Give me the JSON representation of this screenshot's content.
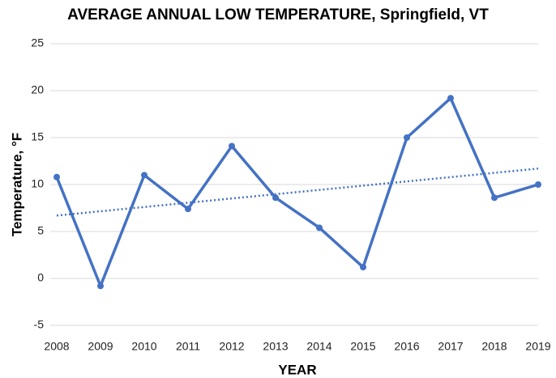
{
  "chart_data": {
    "type": "line",
    "title": "AVERAGE ANNUAL LOW TEMPERATURE, Springfield, VT",
    "x_label": "YEAR",
    "y_label": "Temperature, °F",
    "x": [
      2008,
      2009,
      2010,
      2011,
      2012,
      2013,
      2014,
      2015,
      2016,
      2017,
      2018,
      2019
    ],
    "series": [
      {
        "color": "#4472c4",
        "values": [
          10.8,
          -0.8,
          11.0,
          7.4,
          14.1,
          8.6,
          5.4,
          1.2,
          15.0,
          19.2,
          8.6,
          10.0
        ]
      }
    ],
    "trendline": {
      "x": [
        2008,
        2019
      ],
      "values": [
        6.7,
        11.7
      ],
      "color": "#4472c4",
      "style": "dotted"
    },
    "xlim": [
      2008,
      2019
    ],
    "xticks": [
      2008,
      2009,
      2010,
      2011,
      2012,
      2013,
      2014,
      2015,
      2016,
      2017,
      2018,
      2019
    ],
    "ylim": [
      -5,
      25
    ],
    "yticks": [
      -5,
      0,
      5,
      10,
      15,
      20,
      25
    ],
    "grid": true
  }
}
